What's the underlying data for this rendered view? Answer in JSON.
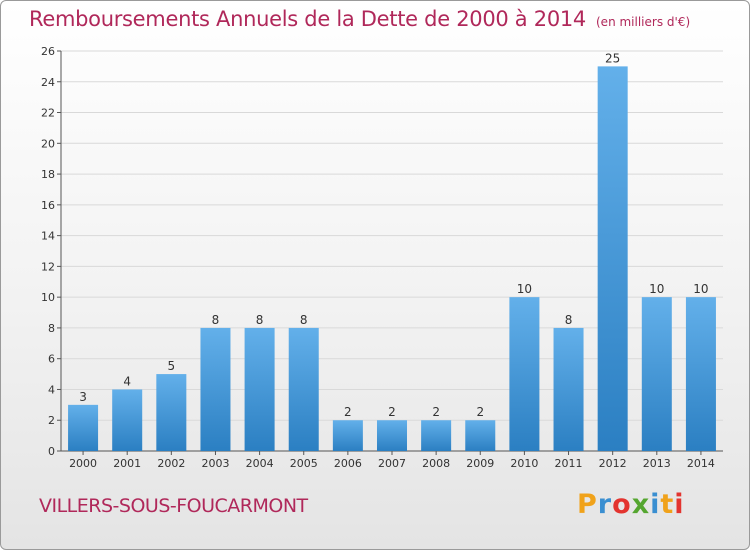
{
  "page": {
    "title": "Remboursements Annuels de la Dette de 2000 à 2014",
    "subtitle": "(en milliers d'€)",
    "city": "VILLERS-SOUS-FOUCARMONT",
    "logo": [
      "P",
      "r",
      "o",
      "x",
      "i",
      "t",
      "i"
    ]
  },
  "colors": {
    "title": "#b0285a",
    "bar_light": "#63b0ea",
    "bar_dark": "#2b7fc2",
    "grid": "#d9d9d9"
  },
  "chart_data": {
    "type": "bar",
    "title": "Remboursements Annuels de la Dette de 2000 à 2014",
    "subtitle": "(en milliers d'€)",
    "categories": [
      "2000",
      "2001",
      "2002",
      "2003",
      "2004",
      "2005",
      "2006",
      "2007",
      "2008",
      "2009",
      "2010",
      "2011",
      "2012",
      "2013",
      "2014"
    ],
    "values": [
      3,
      4,
      5,
      8,
      8,
      8,
      2,
      2,
      2,
      2,
      10,
      8,
      25,
      10,
      10
    ],
    "data_labels": [
      "3",
      "4",
      "5",
      "8",
      "8",
      "8",
      "2",
      "2",
      "2",
      "2",
      "10",
      "8",
      "25",
      "10",
      "10"
    ],
    "ylim": [
      0,
      26
    ],
    "yticks": [
      0,
      2,
      4,
      6,
      8,
      10,
      12,
      14,
      16,
      18,
      20,
      22,
      24,
      26
    ],
    "grid": true
  }
}
